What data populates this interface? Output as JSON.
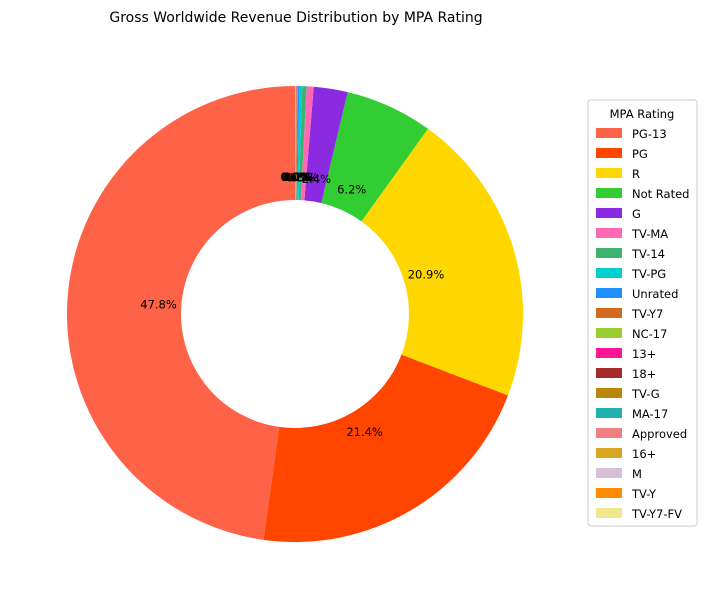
{
  "chart_data": {
    "type": "pie",
    "donut": true,
    "title": "Gross Worldwide Revenue Distribution by MPA Rating",
    "legend_title": "MPA Rating",
    "legend_position": "right",
    "categories": [
      "PG-13",
      "PG",
      "R",
      "Not Rated",
      "G",
      "TV-MA",
      "TV-14",
      "TV-PG",
      "Unrated",
      "TV-Y7",
      "NC-17",
      "13+",
      "18+",
      "TV-G",
      "MA-17",
      "Approved",
      "16+",
      "M",
      "TV-Y",
      "TV-Y7-FV"
    ],
    "values": [
      47.8,
      21.4,
      20.9,
      6.2,
      2.4,
      0.5,
      0.3,
      0.2,
      0.1,
      0.05,
      0.03,
      0.02,
      0.02,
      0.02,
      0.02,
      0.01,
      0.01,
      0.01,
      0.01,
      0.01
    ],
    "labels": [
      "47.8%",
      "21.4%",
      "20.9%",
      "6.2%",
      "2.4%",
      "0.5%",
      "0.3%",
      "0.2%",
      "0.1%",
      "0.0%",
      "0.0%",
      "0.0%",
      "0.0%",
      "0.0%",
      "0.0%",
      "0.0%",
      "0.0%",
      "0.0%",
      "0.0%",
      "0.0%"
    ],
    "colors": [
      "#ff6347",
      "#ff4500",
      "#ffd700",
      "#32cd32",
      "#8a2be2",
      "#ff69b4",
      "#3cb371",
      "#00ced1",
      "#1e90ff",
      "#d2691e",
      "#9acd32",
      "#ff1493",
      "#a52a2a",
      "#b8860b",
      "#20b2aa",
      "#f08080",
      "#daa520",
      "#d8bfd8",
      "#ff8c00",
      "#f0e68c"
    ]
  }
}
